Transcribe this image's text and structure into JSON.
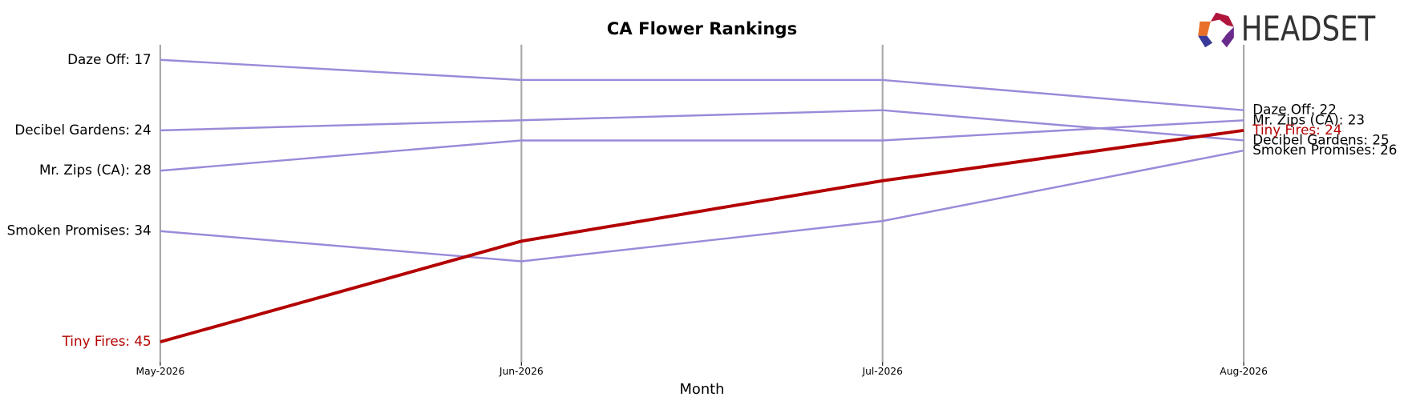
{
  "logo": "HEADSET",
  "chart_data": {
    "type": "bump",
    "title": "CA Flower Rankings",
    "x_label": "Month",
    "categories": [
      "May-2026",
      "Jun-2026",
      "Jul-2026",
      "Aug-2026"
    ],
    "ylim": [
      47,
      15.5
    ],
    "series": [
      {
        "color": "#9b8ad9",
        "values": [
          17,
          19,
          19,
          22
        ],
        "value_labels": [
          "Daze Off: 17",
          null,
          null,
          "Daze Off: 22"
        ]
      },
      {
        "color": "#9b8ad9",
        "values": [
          24,
          23,
          22,
          25
        ],
        "value_labels": [
          "Decibel Gardens: 24",
          null,
          null,
          "Decibel Gardens: 25"
        ]
      },
      {
        "color": "#9b8ad9",
        "values": [
          28,
          25,
          25,
          23
        ],
        "value_labels": [
          "Mr. Zips (CA): 28",
          null,
          null,
          "Mr. Zips (CA): 23"
        ]
      },
      {
        "color": "#9b8ad9",
        "values": [
          34,
          37,
          33,
          26
        ],
        "value_labels": [
          "Smoken Promises: 34",
          null,
          null,
          "Smoken Promises: 26"
        ]
      },
      {
        "color": "#b30000",
        "values": [
          45,
          35,
          29,
          24
        ],
        "value_labels": [
          "Tiny Fires: 45",
          null,
          null,
          "Tiny Fires: 24"
        ]
      }
    ]
  }
}
